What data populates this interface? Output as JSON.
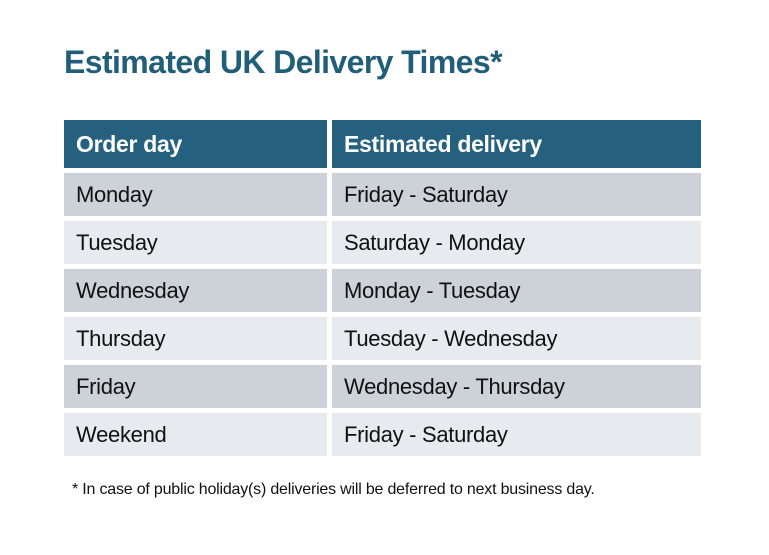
{
  "title": "Estimated UK Delivery Times*",
  "colors": {
    "accent_teal": "#25617F",
    "title_teal": "#215E79",
    "header_text": "#FFFFFF",
    "row_dark": "#CDD2D8",
    "row_light": "#E7EAEE",
    "body_text": "#111111",
    "background": "#FFFFFF"
  },
  "table": {
    "columns": [
      "Order day",
      "Estimated delivery"
    ],
    "rows": [
      [
        "Monday",
        "Friday - Saturday"
      ],
      [
        "Tuesday",
        "Saturday - Monday"
      ],
      [
        "Wednesday",
        "Monday - Tuesday"
      ],
      [
        "Thursday",
        "Tuesday - Wednesday"
      ],
      [
        "Friday",
        "Wednesday - Thursday"
      ],
      [
        "Weekend",
        "Friday - Saturday"
      ]
    ]
  },
  "footnote": "* In case of public holiday(s) deliveries will be deferred to next business day."
}
